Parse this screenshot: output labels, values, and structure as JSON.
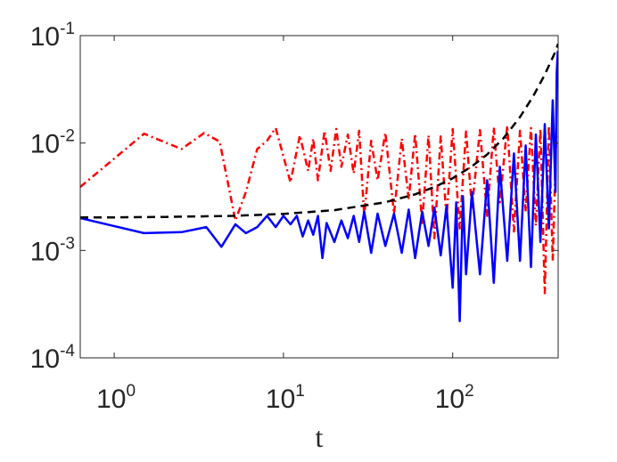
{
  "chart_data": {
    "type": "line",
    "title": "",
    "xlabel": "t",
    "ylabel": "",
    "xscale": "log",
    "yscale": "log",
    "xlim": [
      0.63,
      420
    ],
    "ylim": [
      0.0001,
      0.1
    ],
    "grid": false,
    "legend": "none",
    "x_ticks": [
      {
        "value": 1,
        "base": "10",
        "exp": "0"
      },
      {
        "value": 10,
        "base": "10",
        "exp": "1"
      },
      {
        "value": 100,
        "base": "10",
        "exp": "2"
      }
    ],
    "y_ticks": [
      {
        "value": 0.0001,
        "base": "10",
        "exp": "-4"
      },
      {
        "value": 0.001,
        "base": "10",
        "exp": "-3"
      },
      {
        "value": 0.01,
        "base": "10",
        "exp": "-2"
      },
      {
        "value": 0.1,
        "base": "10",
        "exp": "-1"
      }
    ],
    "series": [
      {
        "style": "dash-dot",
        "color": "#ff0000",
        "x": [
          0.63,
          1.5,
          2.5,
          3.4,
          4.2,
          5.2,
          6.0,
          7.0,
          8.0,
          9.0,
          10.0,
          11.0,
          12.5,
          14.0,
          15.0,
          16.0,
          17.5,
          19.0,
          20.5,
          22.0,
          24.0,
          26.0,
          28.0,
          30.0,
          33.0,
          36.0,
          40.0,
          45.0,
          50.0,
          55.0,
          60.0,
          66.0,
          72.0,
          78.0,
          85.0,
          92.0,
          100.0,
          110.0,
          120.0,
          130.0,
          145.0,
          160.0,
          175.0,
          190.0,
          210.0,
          230.0,
          250.0,
          270.0,
          290.0,
          310.0,
          330.0,
          350.0,
          370.0,
          390.0,
          410.0
        ],
        "y": [
          0.0039,
          0.0122,
          0.0088,
          0.0124,
          0.0103,
          0.0019,
          0.0035,
          0.0088,
          0.0105,
          0.0138,
          0.0075,
          0.0043,
          0.0118,
          0.0055,
          0.011,
          0.0045,
          0.013,
          0.0055,
          0.0135,
          0.006,
          0.012,
          0.0052,
          0.013,
          0.0021,
          0.0105,
          0.0045,
          0.0125,
          0.0022,
          0.011,
          0.003,
          0.0122,
          0.0018,
          0.0118,
          0.0013,
          0.0115,
          0.002,
          0.0135,
          0.0016,
          0.0128,
          0.0025,
          0.0132,
          0.0021,
          0.014,
          0.0028,
          0.0145,
          0.0015,
          0.013,
          0.0023,
          0.0138,
          0.0017,
          0.0135,
          0.0004,
          0.0145,
          0.0008,
          0.0125
        ]
      },
      {
        "style": "solid",
        "color": "#0000ff",
        "x": [
          0.63,
          1.5,
          2.5,
          3.5,
          4.3,
          5.2,
          6.0,
          7.0,
          8.0,
          9.0,
          10.0,
          11.0,
          12.0,
          13.0,
          14.0,
          15.0,
          16.0,
          17.0,
          18.0,
          20.0,
          22.0,
          24.0,
          26.0,
          28.0,
          30.0,
          33.0,
          36.0,
          40.0,
          45.0,
          50.0,
          55.0,
          60.0,
          66.0,
          72.0,
          78.0,
          85.0,
          92.0,
          100.0,
          105.0,
          110.0,
          115.0,
          120.0,
          130.0,
          145.0,
          160.0,
          175.0,
          190.0,
          210.0,
          230.0,
          250.0,
          270.0,
          290.0,
          310.0,
          330.0,
          350.0,
          370.0,
          390.0,
          405.0,
          412.0,
          418.0
        ],
        "y": [
          0.002,
          0.00145,
          0.00148,
          0.00165,
          0.00108,
          0.00175,
          0.00145,
          0.00165,
          0.0021,
          0.00165,
          0.0021,
          0.00175,
          0.0021,
          0.00135,
          0.0019,
          0.0014,
          0.0021,
          0.00085,
          0.0018,
          0.0012,
          0.0019,
          0.0013,
          0.0021,
          0.0012,
          0.0023,
          0.00095,
          0.0022,
          0.0011,
          0.0022,
          0.00095,
          0.0024,
          0.00085,
          0.0023,
          0.0011,
          0.0025,
          0.0009,
          0.0026,
          0.00045,
          0.0028,
          0.00022,
          0.0032,
          0.0006,
          0.0035,
          0.0006,
          0.0045,
          0.0005,
          0.006,
          0.0008,
          0.008,
          0.0008,
          0.0095,
          0.0007,
          0.012,
          0.0012,
          0.015,
          0.0016,
          0.025,
          0.0035,
          0.045,
          0.072
        ]
      },
      {
        "style": "dashed",
        "color": "#000000",
        "x": [
          0.63,
          1,
          2,
          5,
          10,
          20,
          40,
          60,
          80,
          100,
          130,
          160,
          200,
          250,
          300,
          350,
          400,
          420
        ],
        "y": [
          0.00203,
          0.00203,
          0.00205,
          0.0021,
          0.00219,
          0.00237,
          0.00281,
          0.00333,
          0.00396,
          0.0047,
          0.00607,
          0.00783,
          0.0111,
          0.01746,
          0.02751,
          0.04334,
          0.06826,
          0.0839
        ]
      }
    ]
  }
}
